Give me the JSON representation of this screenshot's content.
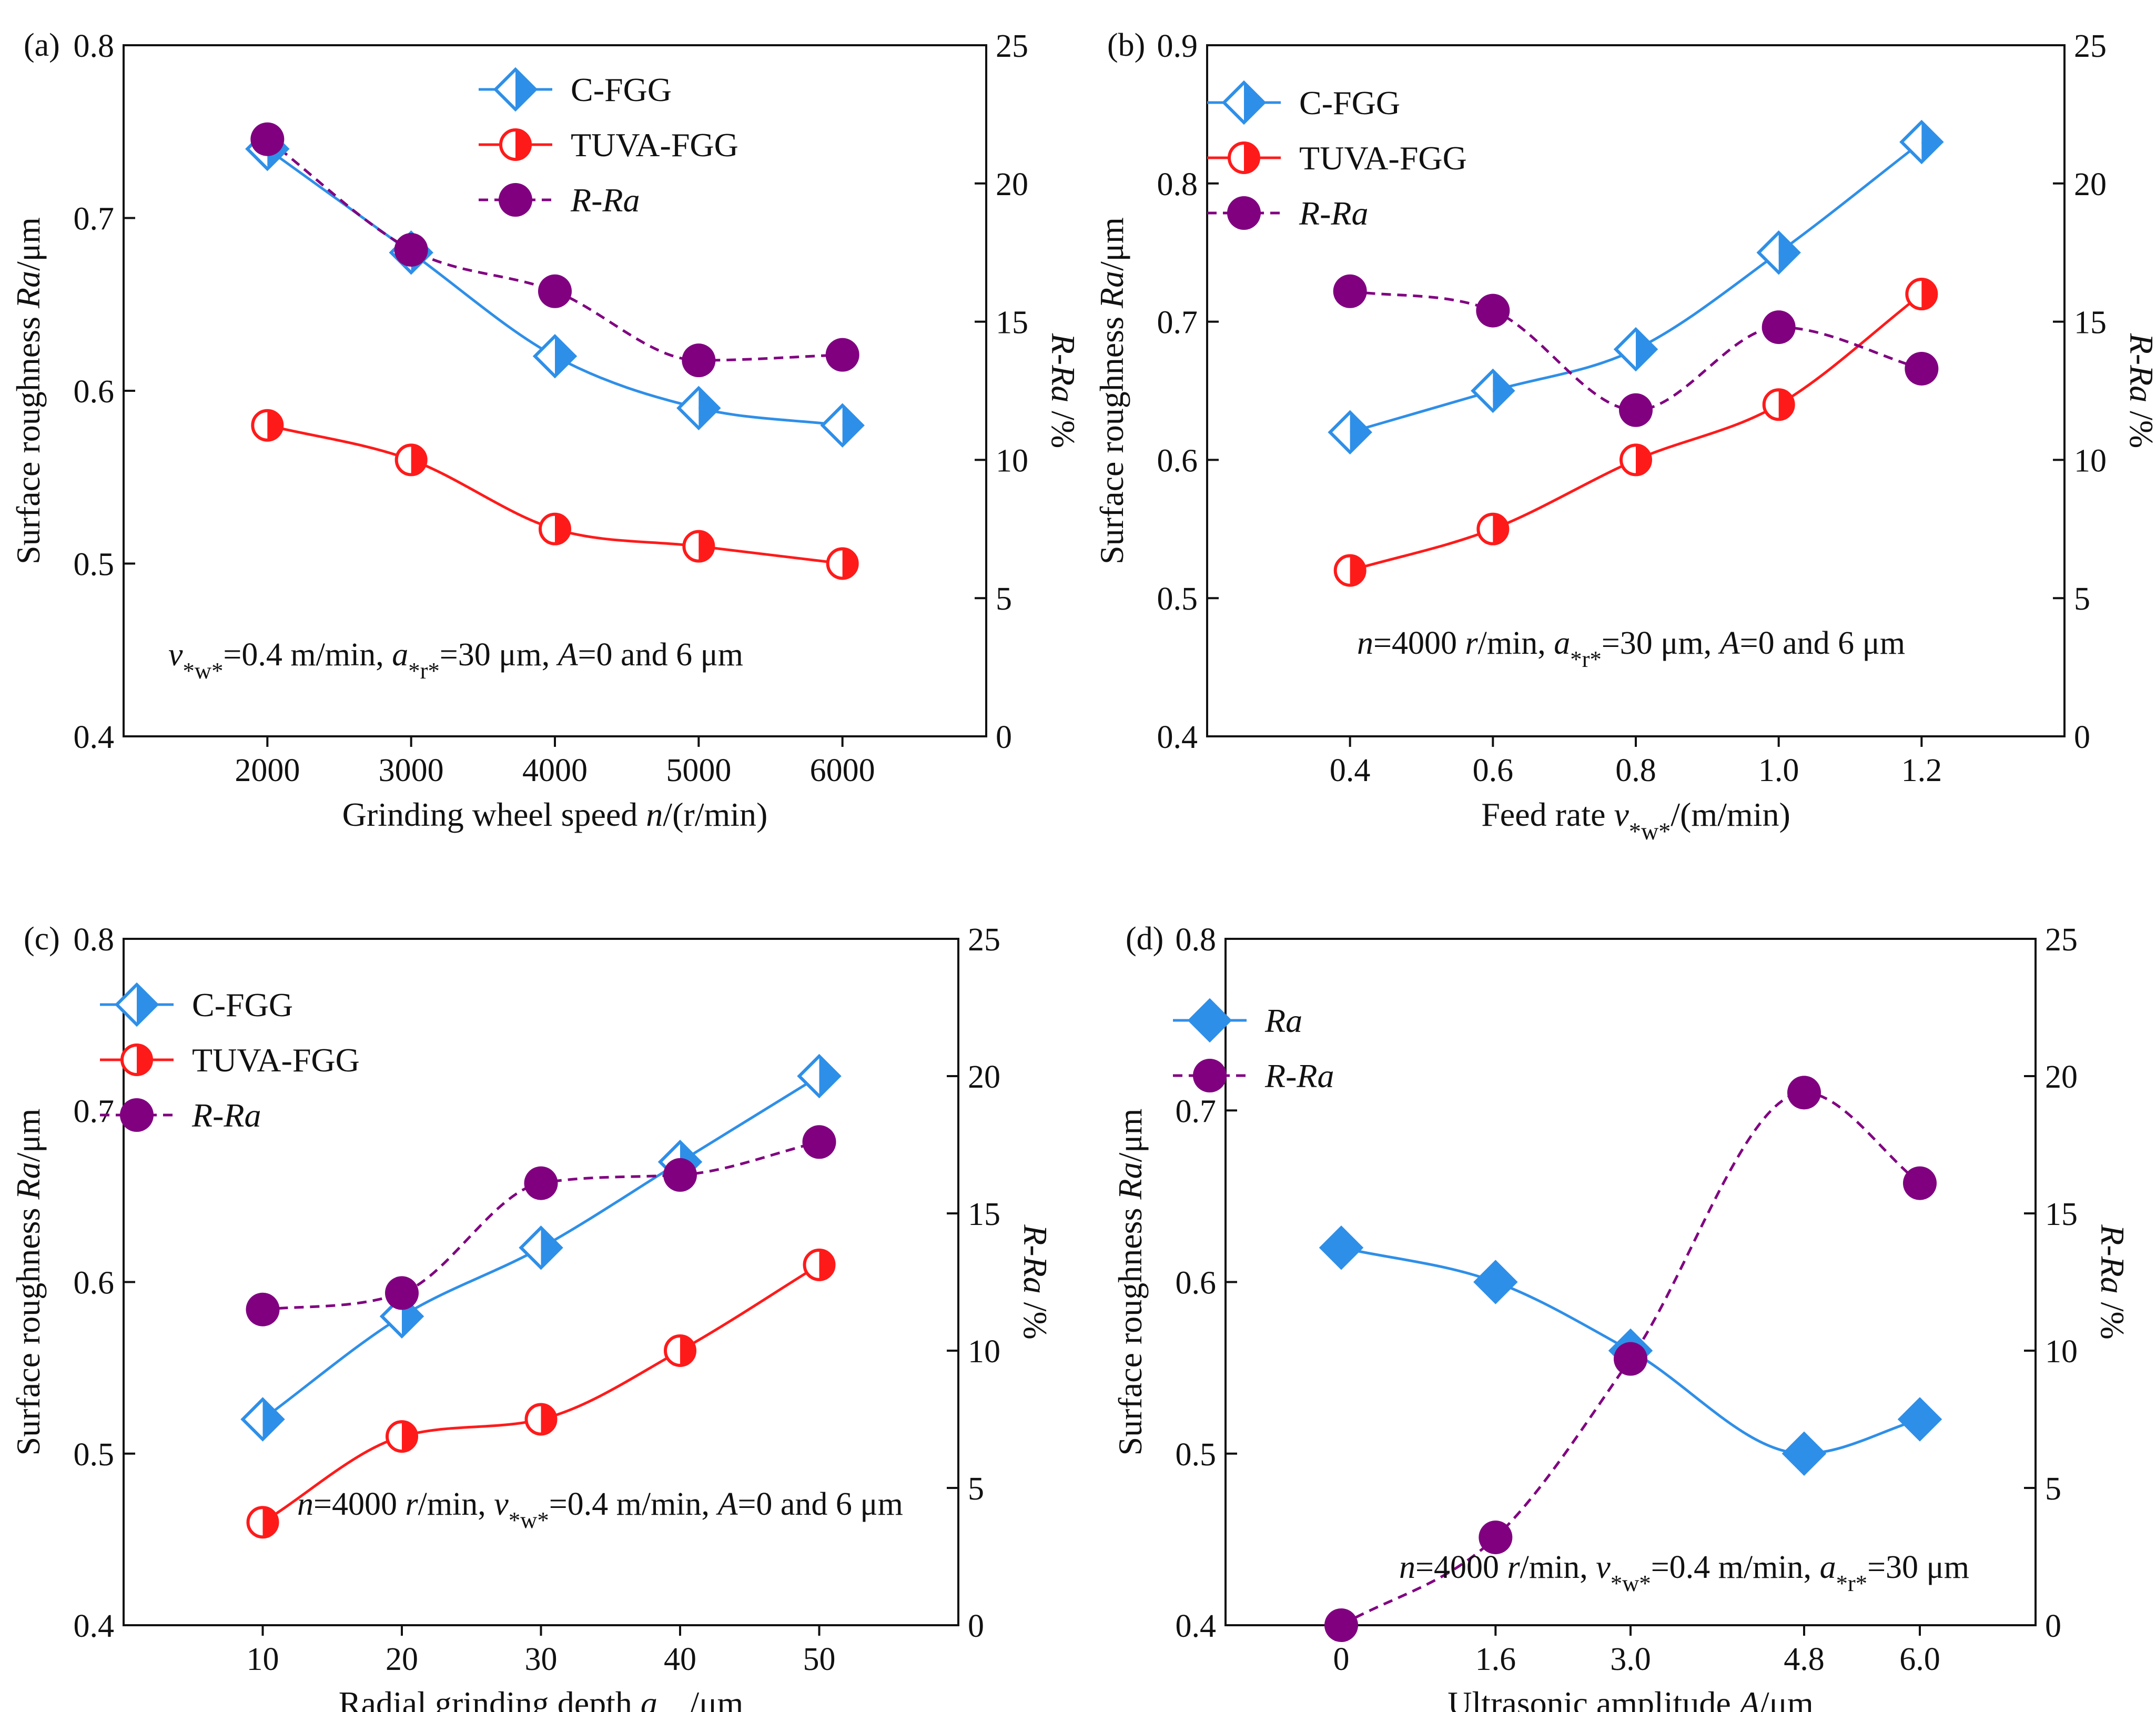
{
  "chart_data": [
    {
      "type": "line",
      "panel_label": "(a)",
      "x": [
        2000,
        3000,
        4000,
        5000,
        6000
      ],
      "tick_labels": [
        "2000",
        "3000",
        "4000",
        "5000",
        "6000"
      ],
      "xlim": [
        1000,
        7000
      ],
      "xlabel": "Grinding wheel speed n/(r/min)",
      "ylabel": "Surface roughness Ra/μm",
      "ylim": [
        0.4,
        0.8
      ],
      "yticks": [
        "0.4",
        "0.5",
        "0.6",
        "0.7",
        "0.8"
      ],
      "y2label": "R-Ra /%",
      "y2lim": [
        0,
        25
      ],
      "y2ticks": [
        "0",
        "5",
        "10",
        "15",
        "20",
        "25"
      ],
      "annotation": "vw=0.4 m/min, ar=30 μm, A=0 and 6 μm",
      "legend_position": "top-center",
      "series": [
        {
          "name": "C-FGG",
          "axis": "left",
          "marker": "diamond-half",
          "color": "#2e8fe8",
          "values": [
            0.74,
            0.68,
            0.62,
            0.59,
            0.58
          ]
        },
        {
          "name": "TUVA-FGG",
          "axis": "left",
          "marker": "circle-half",
          "color": "#ff1a1a",
          "values": [
            0.58,
            0.56,
            0.52,
            0.51,
            0.5
          ]
        },
        {
          "name": "R-Ra",
          "axis": "right",
          "marker": "circle-filled",
          "color": "#800080",
          "dashed": true,
          "values": [
            21.6,
            17.6,
            16.1,
            13.6,
            13.8
          ]
        }
      ]
    },
    {
      "type": "line",
      "panel_label": "(b)",
      "x": [
        0.4,
        0.6,
        0.8,
        1.0,
        1.2
      ],
      "tick_labels": [
        "0.4",
        "0.6",
        "0.8",
        "1.0",
        "1.2"
      ],
      "xlim": [
        0.2,
        1.4
      ],
      "xlabel": "Feed rate vw/(m/min)",
      "ylabel": "Surface roughness Ra/μm",
      "ylim": [
        0.4,
        0.9
      ],
      "yticks": [
        "0.4",
        "0.5",
        "0.6",
        "0.7",
        "0.8",
        "0.9"
      ],
      "y2label": "R-Ra /%",
      "y2lim": [
        0,
        25
      ],
      "y2ticks": [
        "0",
        "5",
        "10",
        "15",
        "20",
        "25"
      ],
      "annotation": "n=4000 r/min, ar=30 μm, A=0 and 6 μm",
      "legend_position": "top-left",
      "series": [
        {
          "name": "C-FGG",
          "axis": "left",
          "marker": "diamond-half",
          "color": "#2e8fe8",
          "values": [
            0.62,
            0.65,
            0.68,
            0.75,
            0.83
          ]
        },
        {
          "name": "TUVA-FGG",
          "axis": "left",
          "marker": "circle-half",
          "color": "#ff1a1a",
          "values": [
            0.52,
            0.55,
            0.6,
            0.64,
            0.72
          ]
        },
        {
          "name": "R-Ra",
          "axis": "right",
          "marker": "circle-filled",
          "color": "#800080",
          "dashed": true,
          "values": [
            16.1,
            15.4,
            11.8,
            14.8,
            13.3
          ]
        }
      ]
    },
    {
      "type": "line",
      "panel_label": "(c)",
      "x": [
        10,
        20,
        30,
        40,
        50
      ],
      "tick_labels": [
        "10",
        "20",
        "30",
        "40",
        "50"
      ],
      "xlim": [
        0,
        60
      ],
      "xlabel": "Radial grinding depth ar/μm",
      "ylabel": "Surface roughness Ra/μm",
      "ylim": [
        0.4,
        0.8
      ],
      "yticks": [
        "0.4",
        "0.5",
        "0.6",
        "0.7",
        "0.8"
      ],
      "y2label": "R-Ra /%",
      "y2lim": [
        0,
        25
      ],
      "y2ticks": [
        "0",
        "5",
        "10",
        "15",
        "20",
        "25"
      ],
      "annotation": "n=4000 r/min, vw=0.4 m/min, A=0 and 6 μm",
      "legend_position": "top-left",
      "series": [
        {
          "name": "C-FGG",
          "axis": "left",
          "marker": "diamond-half",
          "color": "#2e8fe8",
          "values": [
            0.52,
            0.58,
            0.62,
            0.67,
            0.72
          ]
        },
        {
          "name": "TUVA-FGG",
          "axis": "left",
          "marker": "circle-half",
          "color": "#ff1a1a",
          "values": [
            0.46,
            0.51,
            0.52,
            0.56,
            0.61
          ]
        },
        {
          "name": "R-Ra",
          "axis": "right",
          "marker": "circle-filled",
          "color": "#800080",
          "dashed": true,
          "values": [
            11.5,
            12.1,
            16.1,
            16.4,
            17.6
          ]
        }
      ]
    },
    {
      "type": "line",
      "panel_label": "(d)",
      "x": [
        0,
        1.6,
        3.0,
        4.8,
        6.0
      ],
      "tick_labels": [
        "0",
        "1.6",
        "3.0",
        "4.8",
        "6.0"
      ],
      "xlim": [
        -1.2,
        7.2
      ],
      "xlabel": "Ultrasonic amplitude A/μm",
      "ylabel": "Surface roughness Ra/μm",
      "ylim": [
        0.4,
        0.8
      ],
      "yticks": [
        "0.4",
        "0.5",
        "0.6",
        "0.7",
        "0.8"
      ],
      "y2label": "R-Ra /%",
      "y2lim": [
        0,
        25
      ],
      "y2ticks": [
        "0",
        "5",
        "10",
        "15",
        "20",
        "25"
      ],
      "annotation": "n=4000 r/min, vw=0.4 m/min, ar=30 μm",
      "legend_position": "top-left",
      "series": [
        {
          "name": "Ra",
          "axis": "left",
          "marker": "diamond-filled",
          "color": "#2e8fe8",
          "values": [
            0.62,
            0.6,
            0.56,
            0.5,
            0.52
          ]
        },
        {
          "name": "R-Ra",
          "axis": "right",
          "marker": "circle-filled",
          "color": "#800080",
          "dashed": true,
          "values": [
            0,
            3.2,
            9.7,
            19.4,
            16.1
          ]
        }
      ]
    }
  ]
}
